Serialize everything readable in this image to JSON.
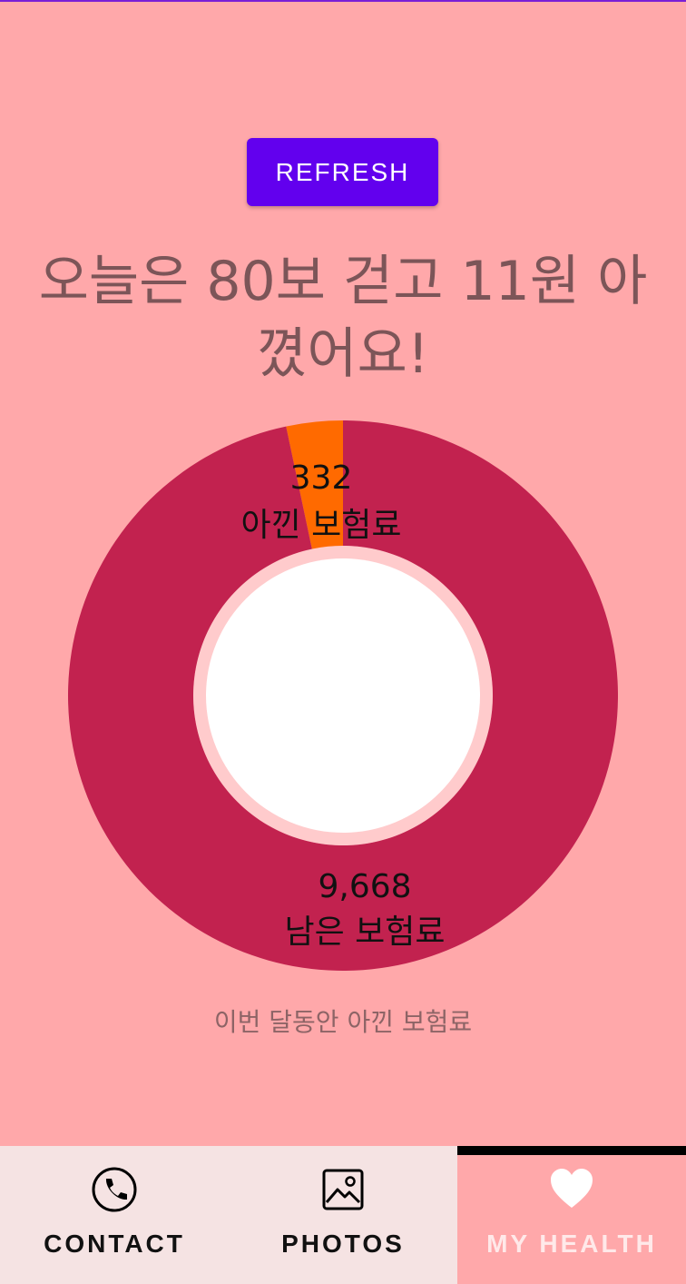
{
  "refresh_label": "REFRESH",
  "headline": "오늘은 80보 걷고 11원 아꼈어요!",
  "chart_data": {
    "type": "pie",
    "slices": [
      {
        "value": 332,
        "value_label": "332",
        "label": "아낀 보험료",
        "color": "#ff6a00"
      },
      {
        "value": 9668,
        "value_label": "9,668",
        "label": "남은 보험료",
        "color": "#c2224f"
      }
    ]
  },
  "caption": "이번 달동안 아낀 보험료",
  "tabs": [
    {
      "label": "CONTACT",
      "icon": "phone-icon"
    },
    {
      "label": "PHOTOS",
      "icon": "image-icon"
    },
    {
      "label": "MY HEALTH",
      "icon": "heart-icon",
      "active": true
    }
  ]
}
